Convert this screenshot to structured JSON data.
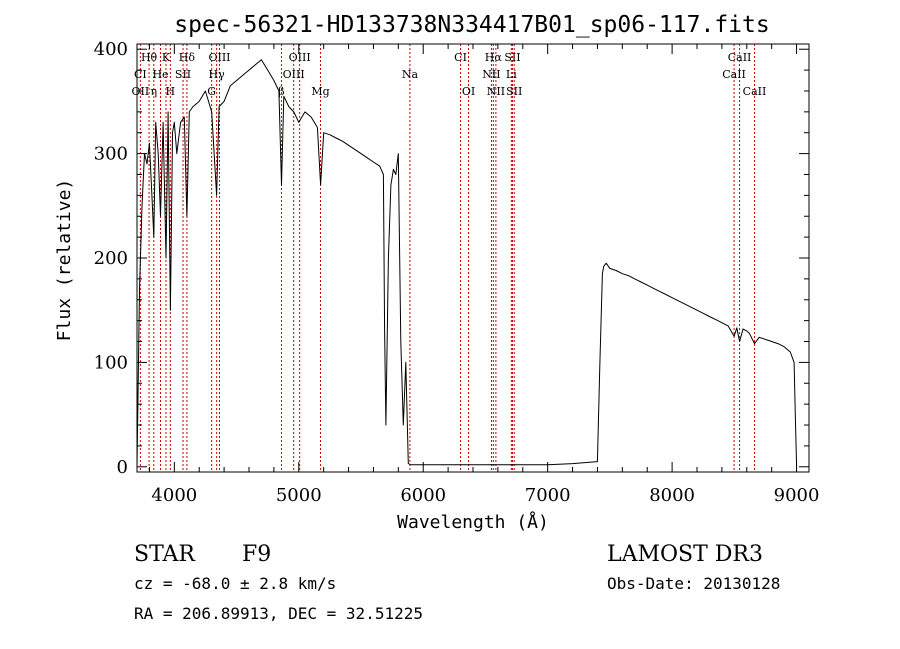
{
  "chart_data": {
    "type": "line",
    "title": "spec-56321-HD133738N334417B01_sp06-117.fits",
    "xlabel": "Wavelength (Å)",
    "ylabel": "Flux (relative)",
    "xlim": [
      3700,
      9100
    ],
    "ylim": [
      -5,
      405
    ],
    "x_ticks": [
      {
        "value": 4000,
        "label": "4000"
      },
      {
        "value": 5000,
        "label": "5000"
      },
      {
        "value": 6000,
        "label": "6000"
      },
      {
        "value": 7000,
        "label": "7000"
      },
      {
        "value": 8000,
        "label": "8000"
      },
      {
        "value": 9000,
        "label": "9000"
      }
    ],
    "y_ticks": [
      {
        "value": 0,
        "label": "0"
      },
      {
        "value": 100,
        "label": "100"
      },
      {
        "value": 200,
        "label": "200"
      },
      {
        "value": 300,
        "label": "300"
      },
      {
        "value": 400,
        "label": "400"
      }
    ],
    "series": [
      {
        "name": "spectrum",
        "x": [
          3700,
          3720,
          3740,
          3760,
          3780,
          3800,
          3820,
          3835,
          3850,
          3870,
          3889,
          3910,
          3933,
          3950,
          3968,
          3985,
          4000,
          4020,
          4050,
          4080,
          4101,
          4120,
          4150,
          4200,
          4250,
          4300,
          4340,
          4360,
          4400,
          4450,
          4500,
          4550,
          4600,
          4650,
          4700,
          4750,
          4800,
          4840,
          4861,
          4880,
          4920,
          4960,
          5000,
          5050,
          5100,
          5150,
          5175,
          5200,
          5250,
          5300,
          5350,
          5400,
          5450,
          5500,
          5550,
          5600,
          5650,
          5680,
          5690,
          5700,
          5720,
          5740,
          5760,
          5780,
          5800,
          5820,
          5840,
          5860,
          5880,
          5900,
          6000,
          6500,
          7000,
          7200,
          7300,
          7400,
          7420,
          7440,
          7450,
          7470,
          7500,
          7550,
          7600,
          7650,
          7700,
          7750,
          7800,
          7850,
          7900,
          7950,
          8000,
          8050,
          8100,
          8150,
          8200,
          8250,
          8300,
          8350,
          8400,
          8450,
          8498,
          8520,
          8542,
          8570,
          8600,
          8620,
          8662,
          8700,
          8750,
          8800,
          8850,
          8900,
          8950,
          8980,
          8990,
          9000
        ],
        "y": [
          0,
          170,
          250,
          300,
          290,
          310,
          260,
          220,
          330,
          300,
          240,
          330,
          200,
          340,
          150,
          320,
          330,
          300,
          330,
          335,
          240,
          340,
          345,
          350,
          360,
          340,
          260,
          345,
          350,
          365,
          370,
          375,
          380,
          385,
          390,
          380,
          370,
          360,
          270,
          355,
          345,
          340,
          330,
          340,
          335,
          325,
          270,
          320,
          318,
          315,
          312,
          308,
          304,
          300,
          296,
          292,
          288,
          280,
          130,
          40,
          200,
          270,
          285,
          280,
          300,
          120,
          40,
          100,
          3,
          2,
          2,
          2,
          2,
          3,
          4,
          5,
          100,
          185,
          192,
          195,
          190,
          188,
          185,
          183,
          180,
          177,
          174,
          171,
          168,
          165,
          162,
          159,
          156,
          153,
          150,
          147,
          144,
          141,
          138,
          135,
          125,
          133,
          120,
          132,
          130,
          128,
          118,
          124,
          122,
          120,
          118,
          115,
          110,
          100,
          50,
          0
        ]
      }
    ],
    "annotations": [
      {
        "label": "Hθ",
        "wavelength": 3797,
        "row": 1
      },
      {
        "label": "K",
        "wavelength": 3933,
        "row": 1
      },
      {
        "label": "Hδ",
        "wavelength": 4101,
        "row": 1
      },
      {
        "label": "OIII",
        "wavelength": 4363,
        "row": 1
      },
      {
        "label": "OIII",
        "wavelength": 5007,
        "row": 1
      },
      {
        "label": "CI",
        "wavelength": 6300,
        "row": 1
      },
      {
        "label": "Hα",
        "wavelength": 6563,
        "row": 1
      },
      {
        "label": "SII",
        "wavelength": 6717,
        "row": 1
      },
      {
        "label": "CaII",
        "wavelength": 8542,
        "row": 1
      },
      {
        "label": "CI",
        "wavelength": 3727,
        "row": 2
      },
      {
        "label": "He",
        "wavelength": 3889,
        "row": 2
      },
      {
        "label": "SII",
        "wavelength": 4070,
        "row": 2
      },
      {
        "label": "Hγ",
        "wavelength": 4340,
        "row": 2
      },
      {
        "label": "OIII",
        "wavelength": 4959,
        "row": 2
      },
      {
        "label": "Na",
        "wavelength": 5893,
        "row": 2
      },
      {
        "label": "NII",
        "wavelength": 6548,
        "row": 2
      },
      {
        "label": "Li",
        "wavelength": 6708,
        "row": 2
      },
      {
        "label": "CaII",
        "wavelength": 8498,
        "row": 2
      },
      {
        "label": "OII",
        "wavelength": 3727,
        "row": 3
      },
      {
        "label": "η",
        "wavelength": 3835,
        "row": 3
      },
      {
        "label": "H",
        "wavelength": 3968,
        "row": 3
      },
      {
        "label": "G",
        "wavelength": 4300,
        "row": 3
      },
      {
        "label": "β",
        "wavelength": 4861,
        "row": 3
      },
      {
        "label": "Mg",
        "wavelength": 5175,
        "row": 3
      },
      {
        "label": "OI",
        "wavelength": 6364,
        "row": 3
      },
      {
        "label": "NII",
        "wavelength": 6584,
        "row": 3
      },
      {
        "label": "SII",
        "wavelength": 6731,
        "row": 3
      },
      {
        "label": "CaII",
        "wavelength": 8662,
        "row": 3
      }
    ],
    "marker_lines": [
      3727,
      3797,
      3835,
      3889,
      3933,
      3968,
      4070,
      4101,
      4300,
      4340,
      4363,
      4861,
      4959,
      5007,
      5175,
      5893,
      6300,
      6364,
      6548,
      6563,
      6584,
      6708,
      6717,
      6731,
      8498,
      8542,
      8662
    ],
    "colors": {
      "spectrum": "#000000",
      "markers": "#cc0000",
      "axis": "#000000"
    }
  },
  "info": {
    "object_type": "STAR",
    "subclass": "F9",
    "survey": "LAMOST DR3",
    "redshift": "cz = -68.0 ± 2.8 km/s",
    "obs_date": "Obs-Date: 20130128",
    "coords": "RA = 206.89913, DEC =  32.51225"
  }
}
